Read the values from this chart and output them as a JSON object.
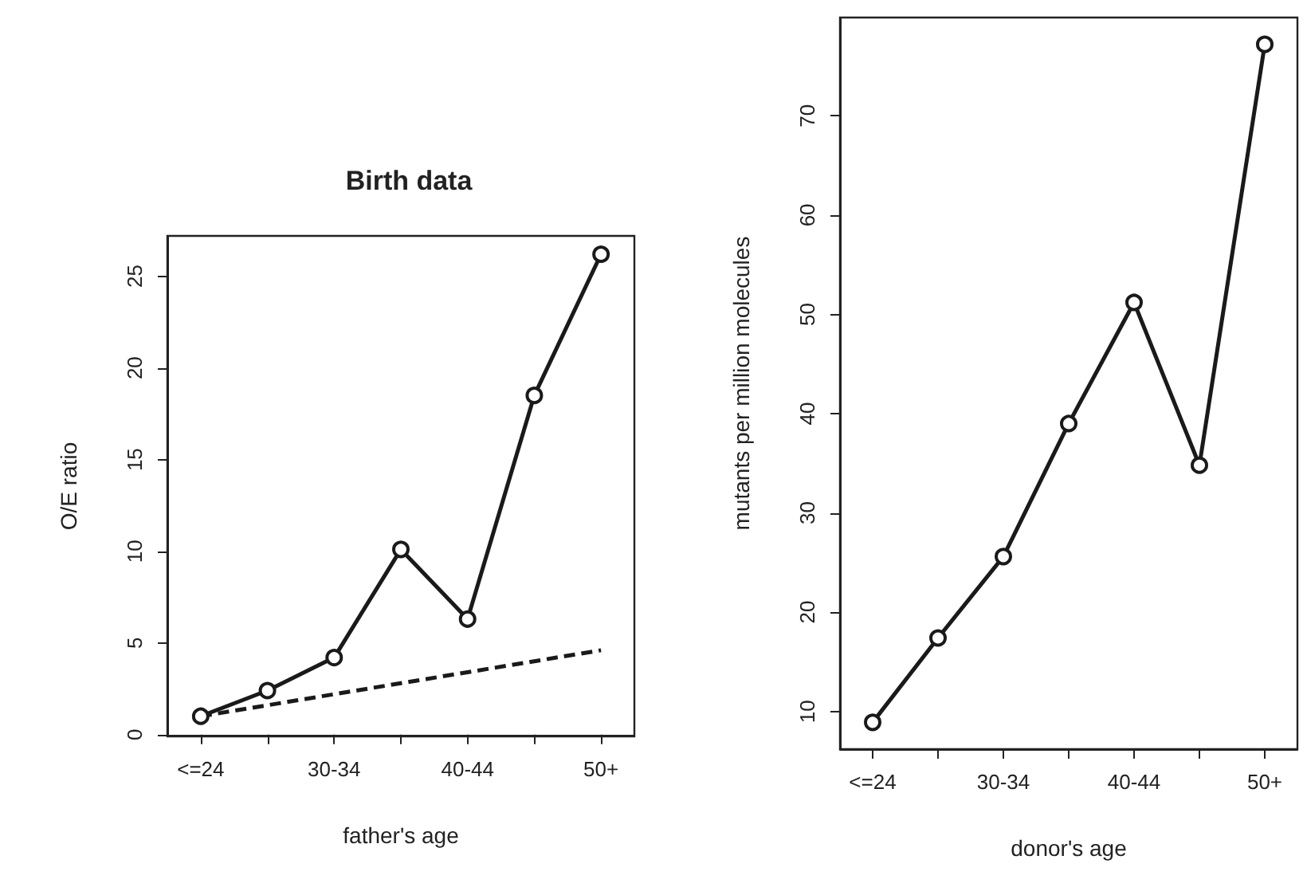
{
  "chart_data": [
    {
      "type": "line",
      "title": "Birth data",
      "xlabel": "father's age",
      "ylabel": "O/E ratio",
      "categories": [
        "<=24",
        null,
        "30-34",
        null,
        "40-44",
        null,
        "50+"
      ],
      "series": [
        {
          "color": "#1a1a1a",
          "values": [
            1.0,
            2.4,
            4.2,
            10.1,
            6.3,
            18.5,
            26.2
          ],
          "marker": "circle",
          "line_style": "solid"
        },
        {
          "color": "#1a1a1a",
          "values": [
            1.0,
            1.6,
            2.2,
            2.8,
            3.4,
            4.0,
            4.6
          ],
          "marker": "none",
          "line_style": "dashed"
        }
      ],
      "ylim": [
        -0.1,
        27.2
      ],
      "yticks": [
        0,
        5,
        10,
        15,
        20,
        25
      ],
      "grid": false
    },
    {
      "type": "line",
      "xlabel": "donor's age",
      "ylabel": "mutants per million molecules",
      "categories": [
        "<=24",
        null,
        "30-34",
        null,
        "40-44",
        null,
        "50+"
      ],
      "series": [
        {
          "color": "#1a1a1a",
          "values": [
            8.9,
            17.4,
            25.6,
            39.0,
            51.2,
            34.8,
            77.2
          ],
          "marker": "circle",
          "line_style": "solid"
        }
      ],
      "ylim": [
        6.2,
        79.9
      ],
      "yticks": [
        10,
        20,
        30,
        40,
        50,
        60,
        70
      ],
      "grid": false
    }
  ]
}
